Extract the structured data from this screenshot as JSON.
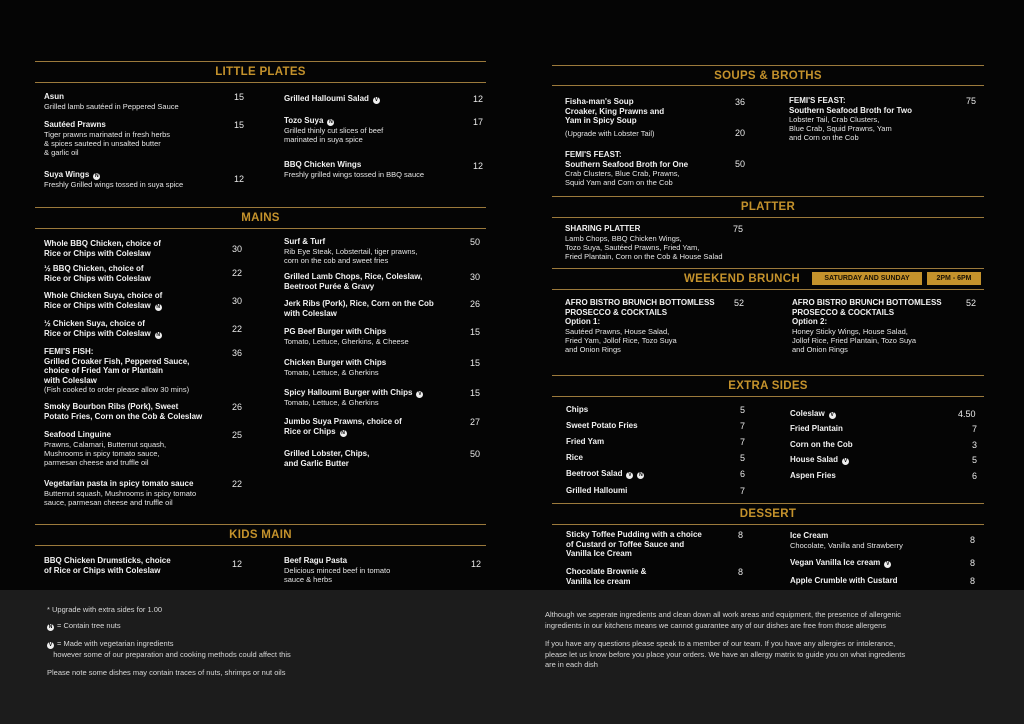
{
  "colors": {
    "accent": "#c4922c",
    "background": "#050505",
    "footer_background": "#1c1c1c"
  },
  "sections": [
    {
      "title": "LITTLE PLATES",
      "items": [
        {
          "name": "Asun",
          "desc": "Grilled lamb sautéed in Peppered Sauce",
          "price": "15",
          "tags": []
        },
        {
          "name": "Sautéed Prawns",
          "desc": "Tiger prawns marinated in fresh herbs\n& spices sauteed in unsalted butter\n& garlic oil",
          "price": "15",
          "tags": []
        },
        {
          "name": "Suya Wings",
          "desc": "Freshly Grilled wings tossed in suya spice",
          "price": "12",
          "tags": [
            "N"
          ]
        },
        {
          "name": "Grilled Halloumi Salad",
          "desc": "",
          "price": "12",
          "tags": [
            "V"
          ]
        },
        {
          "name": "Tozo Suya",
          "desc": "Grilled thinly cut slices of beef\nmarinated in suya spice",
          "price": "17",
          "tags": [
            "N"
          ]
        },
        {
          "name": "BBQ Chicken Wings",
          "desc": "Freshly grilled wings tossed in BBQ sauce",
          "price": "12",
          "tags": []
        }
      ]
    },
    {
      "title": "MAINS",
      "items": [
        {
          "name": "Whole BBQ Chicken, choice of\nRice or Chips with Coleslaw",
          "desc": "",
          "price": "30",
          "tags": []
        },
        {
          "name": "½ BBQ Chicken, choice of\nRice or Chips with Coleslaw",
          "desc": "",
          "price": "22",
          "tags": []
        },
        {
          "name": "Whole Chicken Suya, choice of\nRice or Chips with Coleslaw",
          "desc": "",
          "price": "30",
          "tags": [
            "N"
          ]
        },
        {
          "name": "½ Chicken Suya, choice of\nRice or Chips with Coleslaw",
          "desc": "",
          "price": "22",
          "tags": [
            "N"
          ]
        },
        {
          "name": "FEMI'S FISH:\nGrilled Croaker Fish, Peppered Sauce,\nchoice of Fried Yam or Plantain\nwith Coleslaw",
          "desc": "(Fish cooked to order please allow 30 mins)",
          "price": "36",
          "tags": []
        },
        {
          "name": "Smoky Bourbon Ribs (Pork), Sweet\nPotato Fries, Corn on the Cob & Coleslaw",
          "desc": "",
          "price": "26",
          "tags": []
        },
        {
          "name": "Seafood Linguine",
          "desc": "Prawns, Calamari, Butternut squash,\nMushrooms in spicy tomato sauce,\nparmesan cheese and truffle oil",
          "price": "25",
          "tags": []
        },
        {
          "name": "Vegetarian pasta in spicy tomato sauce",
          "desc": "Butternut squash, Mushrooms in spicy tomato\nsauce, parmesan cheese and truffle oil",
          "price": "22",
          "tags": []
        },
        {
          "name": "Surf & Turf",
          "desc": "Rib Eye Steak, Lobstertail, tiger prawns,\ncorn on the cob and sweet fries",
          "price": "50",
          "tags": []
        },
        {
          "name": "Grilled Lamb Chops, Rice, Coleslaw,\nBeetroot Purée & Gravy",
          "desc": "",
          "price": "30",
          "tags": []
        },
        {
          "name": "Jerk Ribs (Pork), Rice, Corn on the Cob\nwith Coleslaw",
          "desc": "",
          "price": "26",
          "tags": []
        },
        {
          "name": "PG Beef Burger with Chips",
          "desc": "Tomato, Lettuce, Gherkins, & Cheese",
          "price": "15",
          "tags": []
        },
        {
          "name": "Chicken Burger with Chips",
          "desc": "Tomato, Lettuce, & Gherkins",
          "price": "15",
          "tags": []
        },
        {
          "name": "Spicy Halloumi Burger with Chips",
          "desc": "Tomato, Lettuce, & Gherkins",
          "price": "15",
          "tags": [
            "V"
          ]
        },
        {
          "name": "Jumbo Suya Prawns, choice of\nRice or Chips",
          "desc": "",
          "price": "27",
          "tags": [
            "N"
          ]
        },
        {
          "name": "Grilled Lobster, Chips,\nand Garlic Butter",
          "desc": "",
          "price": "50",
          "tags": []
        }
      ]
    },
    {
      "title": "KIDS MAIN",
      "items": [
        {
          "name": "BBQ Chicken Drumsticks, choice\nof Rice or Chips with Coleslaw",
          "desc": "",
          "price": "12",
          "tags": []
        },
        {
          "name": "Beef Ragu Pasta",
          "desc": "Delicious minced beef in tomato\nsauce & herbs",
          "price": "12",
          "tags": []
        }
      ]
    },
    {
      "title": "SOUPS & BROTHS",
      "items": [
        {
          "name": "Fisha-man's Soup\nCroaker, King Prawns and\nYam in Spicy Soup",
          "desc": "(Upgrade with Lobster Tail)",
          "price": "36",
          "upgrade_price": "20",
          "tags": []
        },
        {
          "name": "FEMI'S FEAST:\nSouthern Seafood Broth for One",
          "desc": "Crab Clusters, Blue Crab, Prawns,\nSquid Yam and Corn on the Cob",
          "price": "50",
          "tags": []
        },
        {
          "name": "FEMI'S FEAST:\nSouthern Seafood Broth for Two",
          "desc": "Lobster Tail, Crab Clusters,\nBlue Crab, Squid Prawns, Yam\nand Corn on the Cob",
          "price": "75",
          "tags": []
        }
      ]
    },
    {
      "title": "PLATTER",
      "items": [
        {
          "name": "SHARING PLATTER",
          "desc": "Lamb Chops, BBQ Chicken Wings,\nTozo Suya, Sautéed Prawns, Fried Yam,\nFried Plantain, Corn on the Cob & House Salad",
          "price": "75",
          "tags": []
        }
      ]
    },
    {
      "title": "WEEKEND BRUNCH",
      "badges": [
        "SATURDAY AND SUNDAY",
        "2PM - 6PM"
      ],
      "items": [
        {
          "name": "AFRO BISTRO BRUNCH BOTTOMLESS\nPROSECCO & COCKTAILS\nOption 1:",
          "desc": "Sautéed Prawns, House Salad,\nFried Yam, Jollof Rice, Tozo Suya\nand Onion Rings",
          "price": "52",
          "tags": []
        },
        {
          "name": "AFRO BISTRO BRUNCH BOTTOMLESS\nPROSECCO & COCKTAILS\nOption 2:",
          "desc": "Honey Sticky Wings, House Salad,\nJollof Rice, Fried Plantain, Tozo Suya\nand Onion Rings",
          "price": "52",
          "tags": []
        }
      ]
    },
    {
      "title": "EXTRA SIDES",
      "items": [
        {
          "name": "Chips",
          "desc": "",
          "price": "5",
          "tags": []
        },
        {
          "name": "Sweet Potato Fries",
          "desc": "",
          "price": "7",
          "tags": []
        },
        {
          "name": "Fried Yam",
          "desc": "",
          "price": "7",
          "tags": []
        },
        {
          "name": "Rice",
          "desc": "",
          "price": "5",
          "tags": []
        },
        {
          "name": "Beetroot Salad",
          "desc": "",
          "price": "6",
          "tags": [
            "V",
            "N"
          ]
        },
        {
          "name": "Grilled Halloumi",
          "desc": "",
          "price": "7",
          "tags": []
        },
        {
          "name": "Coleslaw",
          "desc": "",
          "price": "4.50",
          "tags": [
            "V"
          ]
        },
        {
          "name": "Fried Plantain",
          "desc": "",
          "price": "7",
          "tags": []
        },
        {
          "name": "Corn on the Cob",
          "desc": "",
          "price": "3",
          "tags": []
        },
        {
          "name": "House Salad",
          "desc": "",
          "price": "5",
          "tags": [
            "V"
          ]
        },
        {
          "name": "Aspen Fries",
          "desc": "",
          "price": "6",
          "tags": []
        }
      ]
    },
    {
      "title": "DESSERT",
      "items": [
        {
          "name": "Sticky Toffee Pudding with a choice\nof Custard or Toffee Sauce and\nVanilla Ice Cream",
          "desc": "",
          "price": "8",
          "tags": []
        },
        {
          "name": "Chocolate Brownie &\nVanilla Ice cream",
          "desc": "",
          "price": "8",
          "tags": []
        },
        {
          "name": "Ice Cream",
          "desc": "Chocolate, Vanilla and Strawberry",
          "price": "8",
          "tags": []
        },
        {
          "name": "Vegan Vanilla Ice cream",
          "desc": "",
          "price": "8",
          "tags": [
            "V"
          ]
        },
        {
          "name": "Apple Crumble with Custard",
          "desc": "",
          "price": "8",
          "tags": []
        }
      ]
    }
  ],
  "footer": {
    "upgrade_note": "* Upgrade with extra sides for 1.00",
    "nuts_symbol": "N",
    "nuts_label": "= Contain tree nuts",
    "veg_symbol": "V",
    "veg_label": "= Made with vegetarian ingredients\n   however some of our preparation and cooking methods could affect this",
    "traces_note": "Please note some dishes may contain traces of nuts, shrimps or nut oils",
    "allergen_note": "Although we seperate ingredients and clean down all work areas and equipment, the presence of allergenic\ningredients in our kitchens means we cannot guarantee any of our dishes are free from those allergens",
    "questions_note": "If you have any questions please speak to a member of our team. If you have any allergies or intolerance,\nplease let us know before you place your orders. We have an allergy matrix to guide you on what ingredients\nare in each dish"
  }
}
